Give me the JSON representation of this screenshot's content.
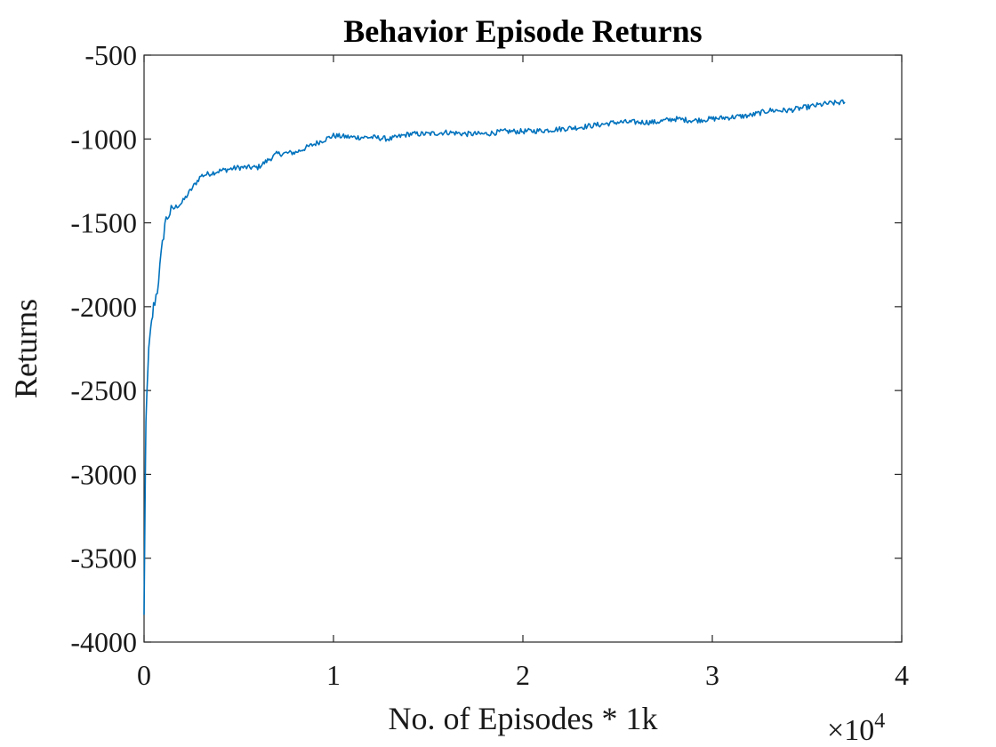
{
  "chart_data": {
    "type": "line",
    "title": "Behavior Episode Returns",
    "xlabel": "No. of Episodes * 1k",
    "ylabel": "Returns",
    "x_exponent": {
      "times": "×",
      "base": "10",
      "power": "4"
    },
    "xlim": [
      0,
      40000
    ],
    "ylim": [
      -4000,
      -500
    ],
    "x_ticks": [
      0,
      10000,
      20000,
      30000,
      40000
    ],
    "x_tick_labels": [
      "0",
      "1",
      "2",
      "3",
      "4"
    ],
    "y_ticks": [
      -4000,
      -3500,
      -3000,
      -2500,
      -2000,
      -1500,
      -1000,
      -500
    ],
    "y_tick_labels": [
      "-4000",
      "-3500",
      "-3000",
      "-2500",
      "-2000",
      "-1500",
      "-1000",
      "-500"
    ],
    "grid": false,
    "box": true,
    "series": [
      {
        "color": "#0072BD",
        "x": [
          0,
          50,
          100,
          200,
          300,
          400,
          500,
          700,
          900,
          1100,
          1300,
          1500,
          2000,
          2500,
          3000,
          4000,
          5000,
          6000,
          7000,
          8000,
          9000,
          10000,
          11000,
          12000,
          13000,
          14000,
          15000,
          16000,
          17000,
          18000,
          19000,
          20000,
          21000,
          22000,
          23000,
          24000,
          25000,
          26000,
          27000,
          28000,
          29000,
          30000,
          31000,
          32000,
          33000,
          34000,
          35000,
          36000,
          37000
        ],
        "y": [
          -3850,
          -3200,
          -2700,
          -2350,
          -2200,
          -2100,
          -2000,
          -1900,
          -1700,
          -1500,
          -1450,
          -1420,
          -1380,
          -1300,
          -1220,
          -1190,
          -1170,
          -1170,
          -1090,
          -1080,
          -1030,
          -980,
          -990,
          -990,
          -1000,
          -970,
          -970,
          -960,
          -970,
          -970,
          -955,
          -955,
          -950,
          -940,
          -930,
          -915,
          -900,
          -900,
          -900,
          -880,
          -890,
          -880,
          -870,
          -860,
          -830,
          -830,
          -810,
          -790,
          -780
        ]
      }
    ]
  }
}
